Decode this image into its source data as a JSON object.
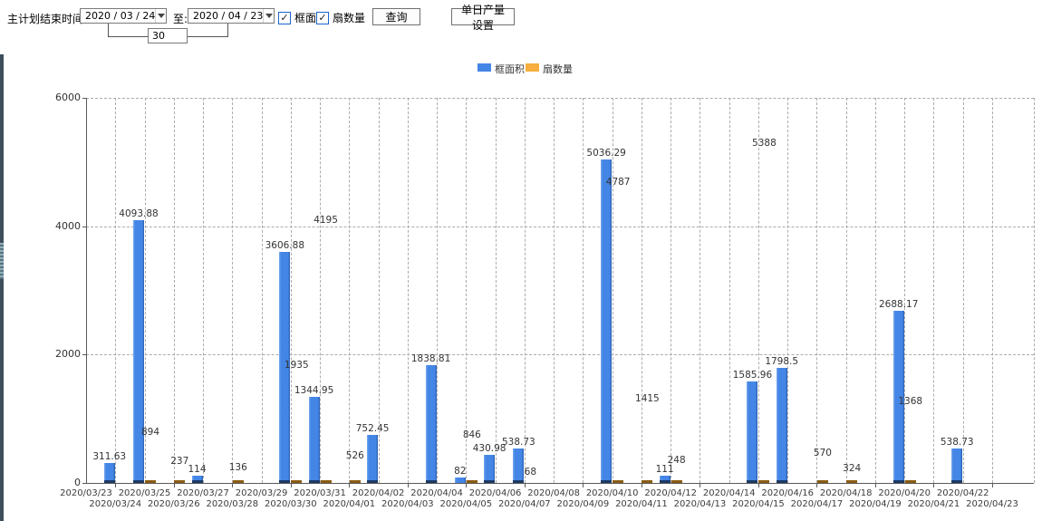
{
  "toolbar": {
    "plan_end_label": "主计划结束时间:",
    "date_from": "2020 / 03 / 24",
    "to_label": "至:",
    "date_to": "2020 / 04 / 23",
    "days_between": "30",
    "checkbox_frame_area": "框面积",
    "checkbox_fan_count": "扇数量",
    "check_glyph": "✓",
    "query_button": "查询",
    "daily_output_button": "单日产量设置"
  },
  "legend": {
    "frame_area": "框面积",
    "fan_count": "扇数量"
  },
  "colors": {
    "frame_area_blue": "#4486e6",
    "fan_count_orange": "#f6ae3e",
    "grid": "#ababab",
    "axis": "#5a5a5a"
  },
  "chart_data": {
    "type": "bar",
    "title": "",
    "xlabel": "",
    "ylabel": "",
    "ylim": [
      0,
      6000
    ],
    "yticks": [
      0,
      2000,
      4000,
      6000
    ],
    "grid": true,
    "legend_position": "top-center",
    "categories": [
      "2020/03/23",
      "2020/03/24",
      "2020/03/25",
      "2020/03/26",
      "2020/03/27",
      "2020/03/28",
      "2020/03/29",
      "2020/03/30",
      "2020/03/31",
      "2020/04/01",
      "2020/04/02",
      "2020/04/03",
      "2020/04/04",
      "2020/04/05",
      "2020/04/06",
      "2020/04/07",
      "2020/04/08",
      "2020/04/09",
      "2020/04/10",
      "2020/04/11",
      "2020/04/12",
      "2020/04/13",
      "2020/04/14",
      "2020/04/15",
      "2020/04/16",
      "2020/04/17",
      "2020/04/18",
      "2020/04/19",
      "2020/04/20",
      "2020/04/21",
      "2020/04/22",
      "2020/04/23"
    ],
    "series": [
      {
        "name": "框面积",
        "color": "#4486e6",
        "values": [
          null,
          311.63,
          4093.88,
          null,
          114,
          null,
          null,
          3606.88,
          1344.95,
          null,
          752.45,
          null,
          1838.81,
          82,
          430.98,
          538.73,
          null,
          null,
          5036.29,
          null,
          111,
          null,
          null,
          1585.96,
          1798.5,
          null,
          null,
          null,
          2688.17,
          null,
          538.73,
          null
        ]
      },
      {
        "name": "扇数量",
        "color": "#f6ae3e",
        "values": [
          null,
          null,
          894,
          237,
          null,
          136,
          null,
          1935,
          4195,
          526,
          null,
          null,
          null,
          846,
          null,
          68,
          null,
          null,
          4787,
          1415,
          248,
          null,
          null,
          5388,
          null,
          570,
          324,
          null,
          1368,
          null,
          null,
          null
        ]
      }
    ]
  }
}
